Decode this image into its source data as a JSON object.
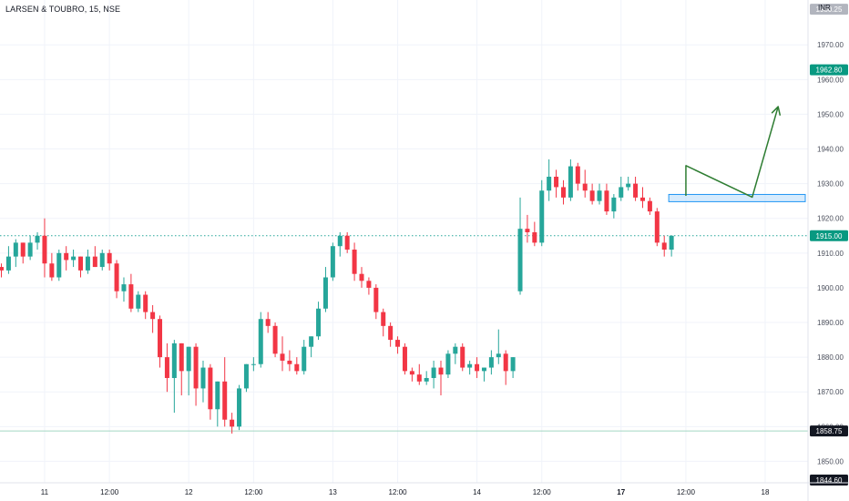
{
  "header": {
    "title": "LARSEN & TOUBRO, 15, NSE",
    "currency": "INR"
  },
  "colors": {
    "up": "#26a69a",
    "down": "#f23645",
    "grid": "#f0f3fa",
    "axis": "#e0e3eb",
    "drawing": "#2e7d32",
    "zone_fill": "#bbdefb",
    "zone_stroke": "#2196f3",
    "text": "#131722",
    "tick": "#4b4f5c"
  },
  "chart_data": {
    "type": "candlestick",
    "title": "LARSEN & TOUBRO, 15, NSE",
    "ylabel": "INR",
    "ylim": [
      1844.6,
      1980.25
    ],
    "y_ticks": [
      1850,
      1860,
      1870,
      1880,
      1890,
      1900,
      1910,
      1920,
      1930,
      1940,
      1950,
      1960,
      1970
    ],
    "x_ticks": [
      {
        "label": "11",
        "bar": 6,
        "bold": false
      },
      {
        "label": "12:00",
        "bar": 15,
        "bold": false
      },
      {
        "label": "12",
        "bar": 26,
        "bold": false
      },
      {
        "label": "12:00",
        "bar": 35,
        "bold": false
      },
      {
        "label": "13",
        "bar": 46,
        "bold": false
      },
      {
        "label": "12:00",
        "bar": 55,
        "bold": false
      },
      {
        "label": "14",
        "bar": 66,
        "bold": false
      },
      {
        "label": "12:00",
        "bar": 75,
        "bold": false
      },
      {
        "label": "17",
        "bar": 86,
        "bold": true
      },
      {
        "label": "12:00",
        "bar": 95,
        "bold": false
      },
      {
        "label": "18",
        "bar": 106,
        "bold": false
      }
    ],
    "price_labels": [
      {
        "value": 1980.25,
        "text": "1980.25",
        "style": "grey"
      },
      {
        "value": 1962.8,
        "text": "1962.80",
        "style": "green"
      },
      {
        "value": 1915.0,
        "text": "1915.00",
        "style": "green"
      },
      {
        "value": 1858.75,
        "text": "1858.75",
        "style": "dark"
      },
      {
        "value": 1844.6,
        "text": "1844.60",
        "style": "dark"
      }
    ],
    "last_price_line": 1915.0,
    "low_line": 1858.75,
    "candles": [
      [
        1906,
        1907,
        1903,
        1905
      ],
      [
        1905,
        1912,
        1904,
        1909
      ],
      [
        1909,
        1914,
        1906,
        1913
      ],
      [
        1913,
        1913,
        1907,
        1909
      ],
      [
        1909,
        1915,
        1908,
        1913
      ],
      [
        1913,
        1916,
        1911,
        1915
      ],
      [
        1915,
        1920,
        1903,
        1907
      ],
      [
        1907,
        1910,
        1902,
        1903
      ],
      [
        1903,
        1911,
        1902,
        1910
      ],
      [
        1910,
        1912,
        1905,
        1908
      ],
      [
        1908,
        1911,
        1906,
        1909
      ],
      [
        1909,
        1909,
        1903,
        1905
      ],
      [
        1905,
        1911,
        1904,
        1909
      ],
      [
        1909,
        1912,
        1906,
        1906
      ],
      [
        1906,
        1911,
        1905,
        1910
      ],
      [
        1910,
        1911,
        1905,
        1907
      ],
      [
        1907,
        1908,
        1897,
        1899
      ],
      [
        1899,
        1903,
        1896,
        1901
      ],
      [
        1901,
        1904,
        1893,
        1894
      ],
      [
        1894,
        1899,
        1893,
        1898
      ],
      [
        1898,
        1899,
        1891,
        1893
      ],
      [
        1893,
        1895,
        1887,
        1891
      ],
      [
        1891,
        1892,
        1877,
        1880
      ],
      [
        1880,
        1884,
        1870,
        1874
      ],
      [
        1874,
        1885,
        1864,
        1884
      ],
      [
        1884,
        1884,
        1869,
        1876
      ],
      [
        1876,
        1883,
        1869,
        1883
      ],
      [
        1883,
        1884,
        1866,
        1871
      ],
      [
        1871,
        1879,
        1867,
        1877
      ],
      [
        1877,
        1878,
        1862,
        1865
      ],
      [
        1865,
        1873,
        1860,
        1873
      ],
      [
        1873,
        1880,
        1860,
        1862
      ],
      [
        1862,
        1864,
        1858,
        1860
      ],
      [
        1860,
        1872,
        1859,
        1871
      ],
      [
        1871,
        1878,
        1870,
        1878
      ],
      [
        1878,
        1880,
        1876,
        1878
      ],
      [
        1878,
        1893,
        1877,
        1891
      ],
      [
        1891,
        1893,
        1887,
        1889
      ],
      [
        1889,
        1890,
        1880,
        1881
      ],
      [
        1881,
        1886,
        1876,
        1879
      ],
      [
        1879,
        1882,
        1876,
        1878
      ],
      [
        1878,
        1880,
        1875,
        1876
      ],
      [
        1876,
        1885,
        1875,
        1883
      ],
      [
        1883,
        1886,
        1880,
        1886
      ],
      [
        1886,
        1896,
        1885,
        1894
      ],
      [
        1894,
        1906,
        1893,
        1903
      ],
      [
        1903,
        1913,
        1902,
        1912
      ],
      [
        1912,
        1916,
        1909,
        1915
      ],
      [
        1915,
        1916,
        1910,
        1911
      ],
      [
        1911,
        1913,
        1902,
        1904
      ],
      [
        1904,
        1906,
        1900,
        1902
      ],
      [
        1902,
        1903,
        1898,
        1900
      ],
      [
        1900,
        1901,
        1891,
        1893
      ],
      [
        1893,
        1894,
        1886,
        1889
      ],
      [
        1889,
        1890,
        1883,
        1885
      ],
      [
        1885,
        1886,
        1881,
        1883
      ],
      [
        1883,
        1884,
        1875,
        1876
      ],
      [
        1876,
        1877,
        1873,
        1875
      ],
      [
        1875,
        1878,
        1872,
        1873
      ],
      [
        1873,
        1876,
        1872,
        1874
      ],
      [
        1874,
        1879,
        1871,
        1877
      ],
      [
        1877,
        1879,
        1869,
        1875
      ],
      [
        1875,
        1882,
        1874,
        1881
      ],
      [
        1881,
        1884,
        1878,
        1883
      ],
      [
        1883,
        1884,
        1876,
        1877
      ],
      [
        1877,
        1879,
        1875,
        1878
      ],
      [
        1878,
        1880,
        1874,
        1876
      ],
      [
        1876,
        1877,
        1873,
        1877
      ],
      [
        1877,
        1882,
        1875,
        1880
      ],
      [
        1880,
        1888,
        1878,
        1881
      ],
      [
        1881,
        1882,
        1872,
        1876
      ],
      [
        1876,
        1880,
        1874,
        1880
      ],
      [
        1899,
        1926,
        1898,
        1917
      ],
      [
        1917,
        1921,
        1913,
        1916
      ],
      [
        1916,
        1919,
        1912,
        1913
      ],
      [
        1913,
        1931,
        1912,
        1928
      ],
      [
        1928,
        1937,
        1925,
        1932
      ],
      [
        1932,
        1934,
        1926,
        1929
      ],
      [
        1929,
        1931,
        1924,
        1926
      ],
      [
        1926,
        1937,
        1925,
        1935
      ],
      [
        1935,
        1936,
        1928,
        1930
      ],
      [
        1930,
        1934,
        1926,
        1928
      ],
      [
        1928,
        1930,
        1924,
        1925
      ],
      [
        1925,
        1930,
        1924,
        1928
      ],
      [
        1928,
        1930,
        1921,
        1922
      ],
      [
        1922,
        1927,
        1920,
        1926
      ],
      [
        1926,
        1932,
        1925,
        1929
      ],
      [
        1929,
        1932,
        1928,
        1930
      ],
      [
        1930,
        1932,
        1925,
        1926
      ],
      [
        1926,
        1929,
        1923,
        1925
      ],
      [
        1925,
        1926,
        1921,
        1922
      ],
      [
        1922,
        1923,
        1912,
        1913
      ],
      [
        1913,
        1915,
        1909,
        1911
      ],
      [
        1911,
        1915,
        1909,
        1915
      ]
    ],
    "zone": {
      "from_bar": 93,
      "to_bar": 125,
      "top": 1926.5,
      "bottom": 1925.2
    },
    "projection": [
      [
        95,
        1926.5
      ],
      [
        95,
        1935.2
      ],
      [
        104.2,
        1926.1
      ],
      [
        107.8,
        1952.2
      ]
    ]
  }
}
